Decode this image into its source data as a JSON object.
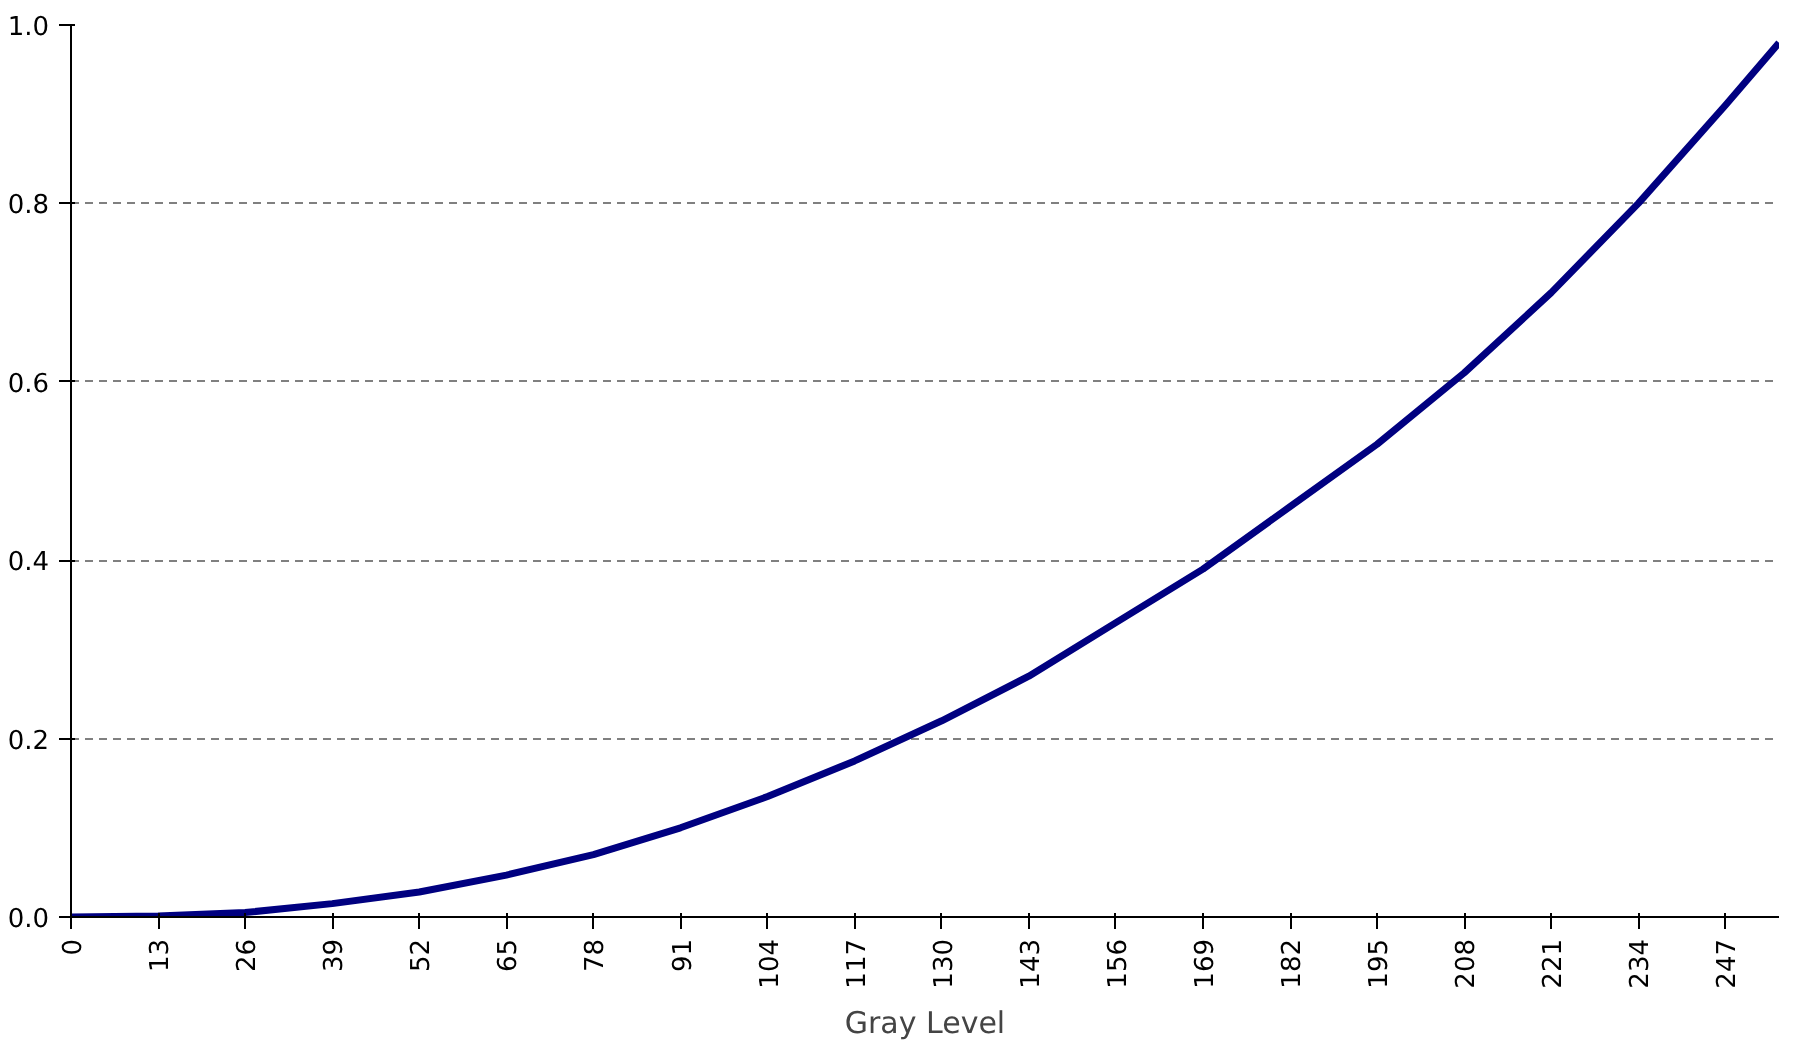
{
  "chart_data": {
    "type": "line",
    "xlabel": "Gray Level",
    "x": [
      0,
      13,
      26,
      39,
      52,
      65,
      78,
      91,
      104,
      117,
      130,
      143,
      156,
      169,
      182,
      195,
      208,
      221,
      234,
      247,
      255
    ],
    "series": [
      {
        "color": "#000080",
        "values": [
          0,
          0.001,
          0.005,
          0.015,
          0.028,
          0.047,
          0.07,
          0.1,
          0.135,
          0.175,
          0.22,
          0.27,
          0.33,
          0.39,
          0.46,
          0.53,
          0.61,
          0.7,
          0.8,
          0.91,
          0.98
        ]
      }
    ],
    "xlim": [
      0,
      255
    ],
    "xticks": [
      0,
      13,
      26,
      39,
      52,
      65,
      78,
      91,
      104,
      117,
      130,
      143,
      156,
      169,
      182,
      195,
      208,
      221,
      234,
      247
    ],
    "ylim": [
      0,
      1
    ],
    "yticks": [
      {
        "value": 0,
        "label": "0.0"
      },
      {
        "value": 0.2,
        "label": "0.2"
      },
      {
        "value": 0.4,
        "label": "0.4"
      },
      {
        "value": 0.6,
        "label": "0.6"
      },
      {
        "value": 0.8,
        "label": "0.8"
      },
      {
        "value": 1,
        "label": "1.0"
      }
    ],
    "grid": "y",
    "line_style": "solid",
    "marker": "none"
  }
}
